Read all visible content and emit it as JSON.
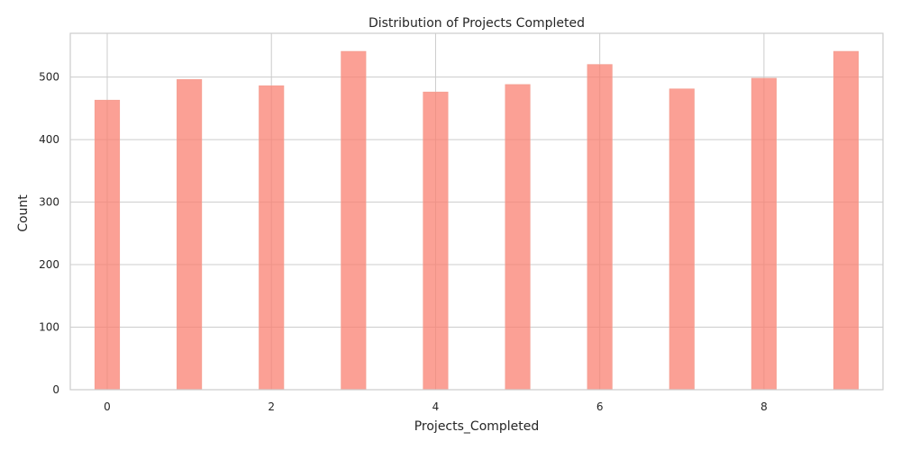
{
  "chart_data": {
    "type": "bar",
    "title": "Distribution of Projects Completed",
    "xlabel": "Projects_Completed",
    "ylabel": "Count",
    "x": [
      0,
      1,
      2,
      3,
      4,
      5,
      6,
      7,
      8,
      9
    ],
    "values": [
      463,
      496,
      486,
      541,
      476,
      488,
      520,
      481,
      498,
      541
    ],
    "xlim": [
      -0.45,
      9.45
    ],
    "ylim": [
      0,
      570
    ],
    "x_ticks": [
      "0",
      "2",
      "4",
      "6",
      "8"
    ],
    "y_ticks": [
      "0",
      "100",
      "200",
      "300",
      "400",
      "500"
    ],
    "grid": true,
    "bar_color": "#fa8072",
    "bar_opacity": 0.75,
    "grid_color": "#cccccc"
  }
}
